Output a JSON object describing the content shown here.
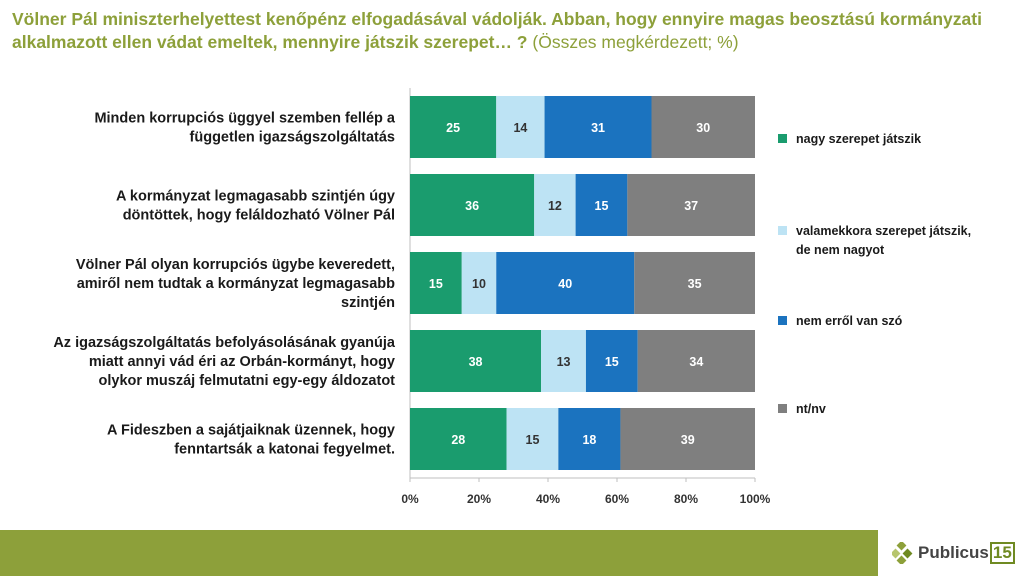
{
  "header": {
    "title": "Völner Pál miniszterhelyettest kenőpénz elfogadásával vádolják. Abban, hogy ennyire magas beosztású kormányzati alkalmazott ellen vádat emeltek, mennyire játszik szerepet… ?",
    "subtitle": "(Összes megkérdezett; %)"
  },
  "chart_data": {
    "type": "bar",
    "orientation": "horizontal",
    "stacked": "percent",
    "categories": [
      [
        "Minden korrupciós üggyel szemben fellép a",
        "független igazságszolgáltatás"
      ],
      [
        "A kormányzat legmagasabb szintjén úgy",
        "döntöttek, hogy feláldozható Völner Pál"
      ],
      [
        "Völner Pál olyan korrupciós ügybe keveredett,",
        "amiről nem tudtak a kormányzat legmagasabb",
        "szintjén"
      ],
      [
        "Az igazságszolgáltatás befolyásolásának gyanúja",
        "miatt annyi vád éri az Orbán-kormányt, hogy",
        "olykor muszáj felmutatni egy-egy áldozatot"
      ],
      [
        "A Fideszben a sajátjaiknak üzennek, hogy",
        "fenntartsák a katonai fegyelmet."
      ]
    ],
    "series": [
      {
        "name": "nagy szerepet játszik",
        "color": "#1a9c6e",
        "values": [
          25,
          36,
          15,
          38,
          28
        ]
      },
      {
        "name": "valamekkora szerepet játszik, de nem nagyot",
        "legend_lines": [
          "valamekkora szerepet játszik,",
          "de nem nagyot"
        ],
        "color": "#bde3f4",
        "values": [
          14,
          12,
          10,
          13,
          15
        ]
      },
      {
        "name": "nem erről van szó",
        "color": "#1b73bf",
        "values": [
          31,
          15,
          40,
          15,
          18
        ]
      },
      {
        "name": "nt/nv",
        "color": "#7f7f7f",
        "values": [
          30,
          37,
          35,
          34,
          39
        ]
      }
    ],
    "xlim": [
      0,
      100
    ],
    "xticks": [
      "0%",
      "20%",
      "40%",
      "60%",
      "80%",
      "100%"
    ],
    "legend_position": "right"
  },
  "footer": {
    "logo_text": "Publicus",
    "logo_number": "15"
  }
}
